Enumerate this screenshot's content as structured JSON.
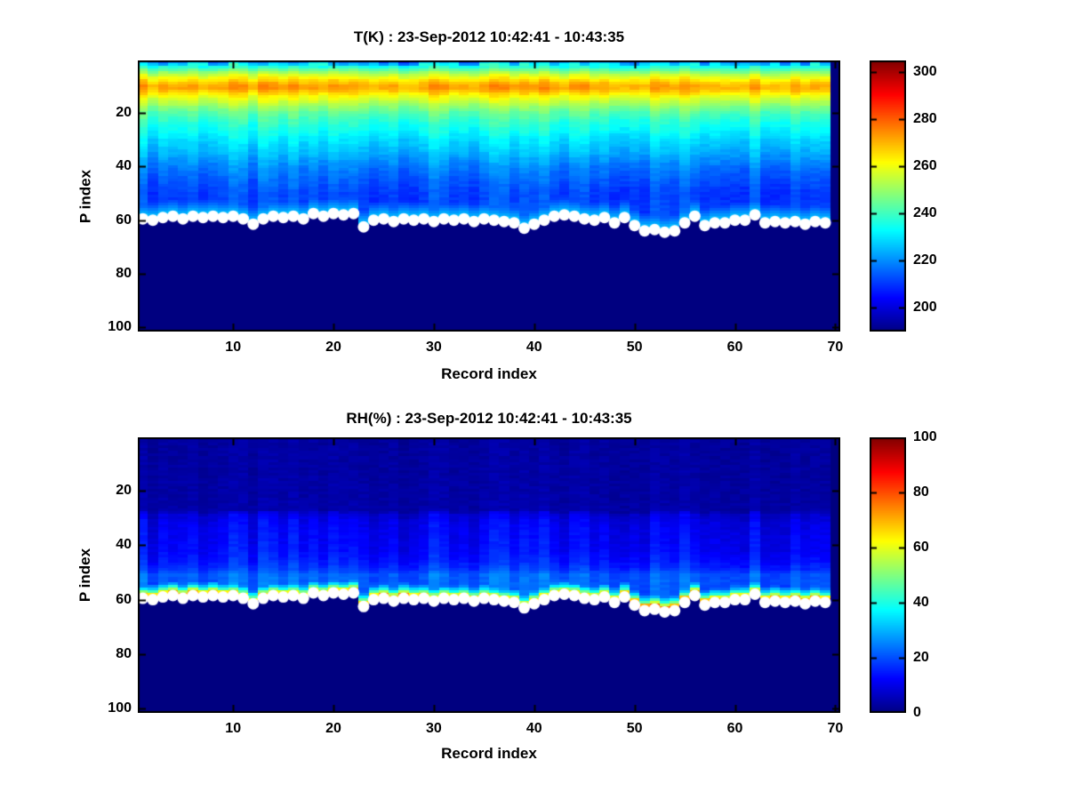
{
  "chart_data": [
    {
      "type": "heatmap",
      "title": "T(K) : 23-Sep-2012 10:42:41 - 10:43:35",
      "xlabel": "Record index",
      "ylabel": "P index",
      "colormap": "jet",
      "x_range": [
        1,
        70
      ],
      "p_range": [
        1,
        101
      ],
      "y_axis_reversed": true,
      "grid": false,
      "xticks": [
        10,
        20,
        30,
        40,
        50,
        60,
        70
      ],
      "yticks": [
        20,
        40,
        60,
        80,
        100
      ],
      "clim": [
        190,
        305
      ],
      "colorbar_ticks": [
        200,
        220,
        240,
        260,
        280,
        300
      ],
      "missing_records": [
        70
      ],
      "profile_p": [
        1,
        2,
        3,
        4,
        5,
        6,
        7,
        8,
        9,
        10,
        11,
        12,
        13,
        14,
        16,
        18,
        20,
        23,
        26,
        30,
        35,
        40,
        45,
        50,
        53,
        55,
        101
      ],
      "profile_value": [
        222,
        230,
        237,
        244,
        250,
        256,
        261,
        265,
        269,
        272,
        272,
        269,
        265,
        261,
        255,
        249,
        244,
        239,
        235,
        230,
        225,
        219,
        215,
        212,
        212,
        213,
        213
      ],
      "column_noise_amp": 4,
      "cell_noise_amp": 1.5,
      "top_rows_extra_noise": {
        "rows": 2,
        "amp": 10
      },
      "surface_band": {
        "kind": "warm-layer",
        "surface_value": 231,
        "lapse_per_level": 3.2,
        "depth_levels": 6
      },
      "surface_p_index": [
        59.5,
        60,
        59,
        58.5,
        59.5,
        58.5,
        59,
        58.5,
        59,
        58.5,
        59.5,
        61.5,
        59.5,
        58.5,
        59,
        58.5,
        59.5,
        57.5,
        58.5,
        57.5,
        58,
        57.5,
        62.5,
        60,
        59.5,
        60.5,
        59.5,
        60,
        59.5,
        60.5,
        59.5,
        60,
        59.5,
        60.5,
        59.5,
        60,
        60.5,
        61,
        63,
        61.5,
        60,
        58.5,
        58,
        58.5,
        59.5,
        60,
        59,
        61,
        59,
        62,
        64,
        63.5,
        64.5,
        64,
        61,
        58.5,
        62,
        61,
        61,
        60,
        60,
        58,
        61,
        60.5,
        61,
        60.5,
        61.5,
        60.5,
        61
      ],
      "surface_marker": {
        "shape": "circle",
        "color": "#ffffff",
        "radius_px": 6.5
      }
    },
    {
      "type": "heatmap",
      "title": "RH(%) : 23-Sep-2012 10:42:41 - 10:43:35",
      "xlabel": "Record index",
      "ylabel": "P index",
      "colormap": "jet",
      "x_range": [
        1,
        70
      ],
      "p_range": [
        1,
        101
      ],
      "y_axis_reversed": true,
      "grid": false,
      "xticks": [
        10,
        20,
        30,
        40,
        50,
        60,
        70
      ],
      "yticks": [
        20,
        40,
        60,
        80,
        100
      ],
      "clim": [
        0,
        100
      ],
      "colorbar_ticks": [
        0,
        20,
        40,
        60,
        80,
        100
      ],
      "missing_records": [
        70
      ],
      "profile_p": [
        1,
        27,
        29,
        32,
        36,
        42,
        46,
        49,
        51,
        101
      ],
      "profile_value": [
        3,
        4,
        9,
        11,
        12,
        13,
        15,
        18,
        22,
        22
      ],
      "column_noise_amp": 4,
      "cell_noise_amp": 1.2,
      "surface_band": {
        "kind": "moist-layer",
        "depth_weights": [
          1,
          0.95,
          0.8,
          0.55,
          0.42,
          0.3,
          0.22,
          0.17,
          0.14,
          0.12,
          0.11,
          0.1,
          0.09
        ],
        "peak_per_record": [
          76,
          80,
          78,
          82,
          79,
          81,
          77,
          80,
          78,
          74,
          72,
          70,
          74,
          71,
          73,
          70,
          72,
          69,
          71,
          70,
          74,
          78,
          72,
          80,
          82,
          79,
          83,
          80,
          77,
          73,
          71,
          73,
          70,
          72,
          74,
          71,
          70,
          72,
          69,
          73,
          74,
          72,
          70,
          73,
          75,
          72,
          74,
          76,
          80,
          84,
          86,
          88,
          85,
          87,
          83,
          80,
          82,
          76,
          74,
          72,
          75,
          70,
          80,
          82,
          79,
          81,
          83,
          80,
          78
        ]
      },
      "surface_p_index": [
        59.5,
        60,
        59,
        58.5,
        59.5,
        58.5,
        59,
        58.5,
        59,
        58.5,
        59.5,
        61.5,
        59.5,
        58.5,
        59,
        58.5,
        59.5,
        57.5,
        58.5,
        57.5,
        58,
        57.5,
        62.5,
        60,
        59.5,
        60.5,
        59.5,
        60,
        59.5,
        60.5,
        59.5,
        60,
        59.5,
        60.5,
        59.5,
        60,
        60.5,
        61,
        63,
        61.5,
        60,
        58.5,
        58,
        58.5,
        59.5,
        60,
        59,
        61,
        59,
        62,
        64,
        63.5,
        64.5,
        64,
        61,
        58.5,
        62,
        61,
        61,
        60,
        60,
        58,
        61,
        60.5,
        61,
        60.5,
        61.5,
        60.5,
        61
      ],
      "surface_marker": {
        "shape": "circle",
        "color": "#ffffff",
        "radius_px": 6.5
      }
    }
  ]
}
